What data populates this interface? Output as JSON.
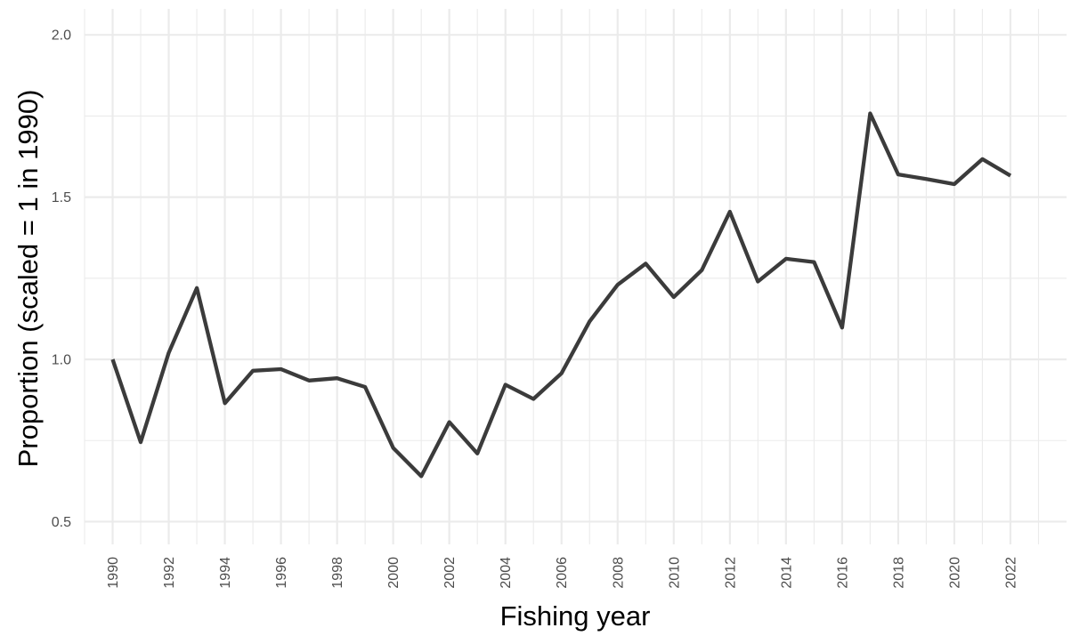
{
  "chart_data": {
    "type": "line",
    "title": "",
    "xlabel": "Fishing year",
    "ylabel": "Proportion (scaled = 1 in 1990)",
    "xlim": [
      1989,
      2024
    ],
    "ylim": [
      0.43,
      2.08
    ],
    "x_ticks": [
      1990,
      1992,
      1994,
      1996,
      1998,
      2000,
      2002,
      2004,
      2006,
      2008,
      2010,
      2012,
      2014,
      2016,
      2018,
      2020,
      2022
    ],
    "y_ticks": [
      0.5,
      1.0,
      1.5,
      2.0
    ],
    "y_tick_labels": [
      "0.5",
      "1.0",
      "1.5",
      "2.0"
    ],
    "grid": true,
    "legend": "none",
    "line_color": "#3b3b3b",
    "grid_color": "#ebebeb",
    "series": [
      {
        "x": [
          1990,
          1991,
          1992,
          1993,
          1994,
          1995,
          1996,
          1997,
          1998,
          1999,
          2000,
          2001,
          2002,
          2003,
          2004,
          2005,
          2006,
          2007,
          2008,
          2009,
          2010,
          2011,
          2012,
          2013,
          2014,
          2015,
          2016,
          2017,
          2018,
          2019,
          2020,
          2021,
          2022
        ],
        "y": [
          1.0,
          0.745,
          1.02,
          1.22,
          0.865,
          0.965,
          0.97,
          0.935,
          0.942,
          0.915,
          0.727,
          0.64,
          0.807,
          0.71,
          0.922,
          0.878,
          0.957,
          1.117,
          1.23,
          1.295,
          1.192,
          1.275,
          1.455,
          1.24,
          1.31,
          1.3,
          1.098,
          1.758,
          1.57,
          1.556,
          1.54,
          1.617,
          1.566
        ]
      }
    ]
  }
}
